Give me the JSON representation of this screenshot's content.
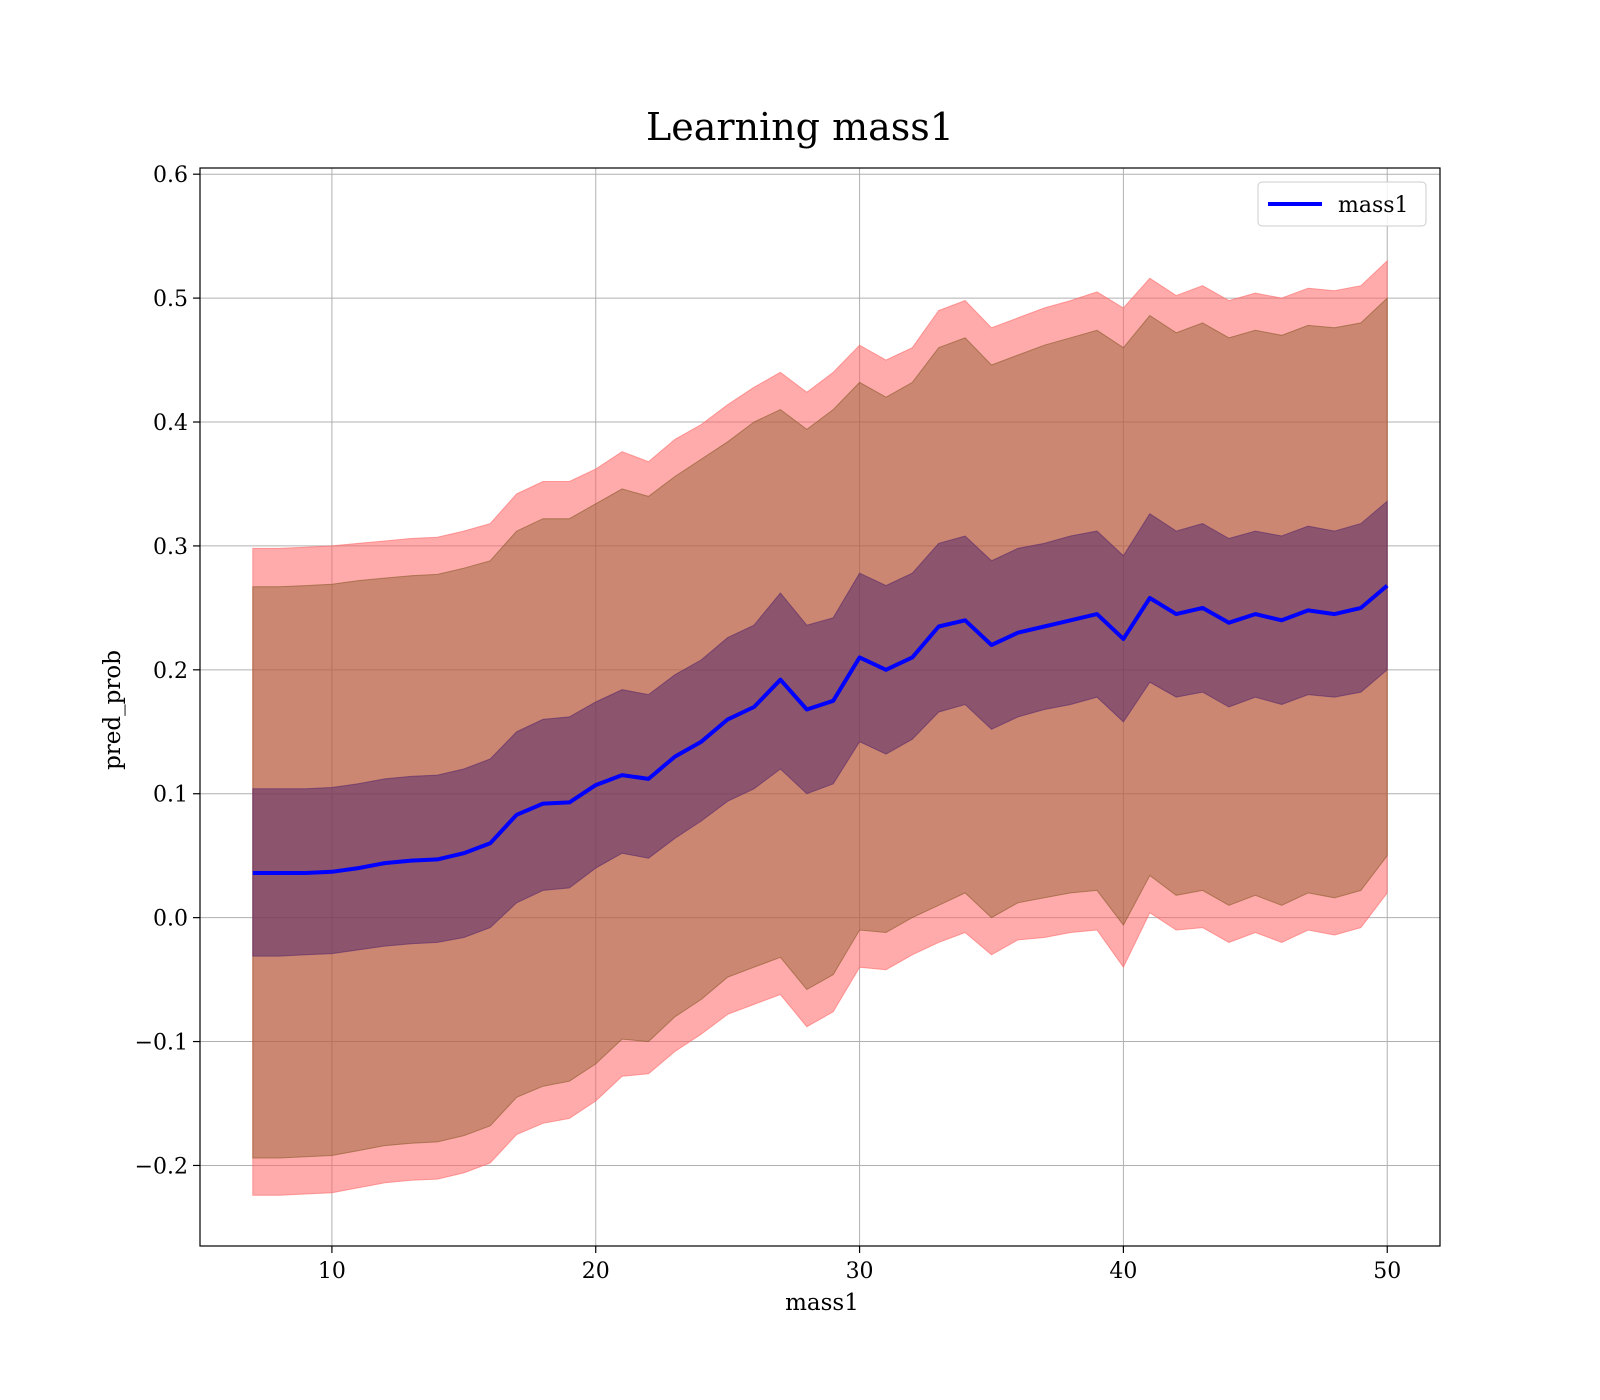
{
  "chart_data": {
    "type": "area",
    "title": "Learning mass1",
    "xlabel": "mass1",
    "ylabel": "pred_prob",
    "xlim": [
      5,
      52
    ],
    "ylim": [
      -0.265,
      0.605
    ],
    "xticks": [
      10,
      20,
      30,
      40,
      50
    ],
    "xtick_labels": [
      "10",
      "20",
      "30",
      "40",
      "50"
    ],
    "yticks": [
      -0.2,
      -0.1,
      0.0,
      0.1,
      0.2,
      0.3,
      0.4,
      0.5,
      0.6
    ],
    "ytick_labels": [
      "−0.2",
      "−0.1",
      "0.0",
      "0.1",
      "0.2",
      "0.3",
      "0.4",
      "0.5",
      "0.6"
    ],
    "grid": true,
    "legend": {
      "position": "top-right",
      "entries": [
        "mass1"
      ]
    },
    "colors": {
      "mean_line": "#0000ff",
      "outer_band": "#ff6666",
      "middle_band": "#8b5a2b",
      "inner_band": "#5a2a6a"
    },
    "x": [
      7,
      8,
      9,
      10,
      11,
      12,
      13,
      14,
      15,
      16,
      17,
      18,
      19,
      20,
      21,
      22,
      23,
      24,
      25,
      26,
      27,
      28,
      29,
      30,
      31,
      32,
      33,
      34,
      35,
      36,
      37,
      38,
      39,
      40,
      41,
      42,
      43,
      44,
      45,
      46,
      47,
      48,
      49,
      50
    ],
    "series": [
      {
        "name": "mass1",
        "values": [
          0.036,
          0.036,
          0.036,
          0.037,
          0.04,
          0.044,
          0.046,
          0.047,
          0.052,
          0.06,
          0.083,
          0.092,
          0.093,
          0.107,
          0.115,
          0.112,
          0.13,
          0.142,
          0.16,
          0.17,
          0.192,
          0.168,
          0.175,
          0.21,
          0.2,
          0.21,
          0.235,
          0.24,
          0.22,
          0.23,
          0.235,
          0.24,
          0.245,
          0.225,
          0.258,
          0.245,
          0.25,
          0.238,
          0.245,
          0.24,
          0.248,
          0.245,
          0.25,
          0.268
        ]
      }
    ],
    "bands": [
      {
        "lower": [
          -0.224,
          -0.224,
          -0.223,
          -0.222,
          -0.218,
          -0.214,
          -0.212,
          -0.211,
          -0.206,
          -0.198,
          -0.175,
          -0.166,
          -0.162,
          -0.148,
          -0.128,
          -0.126,
          -0.108,
          -0.094,
          -0.078,
          -0.07,
          -0.062,
          -0.088,
          -0.076,
          -0.04,
          -0.042,
          -0.03,
          -0.02,
          -0.012,
          -0.03,
          -0.018,
          -0.016,
          -0.012,
          -0.01,
          -0.04,
          0.004,
          -0.01,
          -0.008,
          -0.02,
          -0.012,
          -0.02,
          -0.01,
          -0.014,
          -0.008,
          0.02
        ],
        "upper": [
          0.298,
          0.298,
          0.299,
          0.3,
          0.302,
          0.304,
          0.306,
          0.307,
          0.312,
          0.318,
          0.342,
          0.352,
          0.352,
          0.362,
          0.376,
          0.368,
          0.386,
          0.398,
          0.414,
          0.428,
          0.44,
          0.424,
          0.44,
          0.462,
          0.45,
          0.46,
          0.49,
          0.498,
          0.476,
          0.484,
          0.492,
          0.498,
          0.505,
          0.492,
          0.516,
          0.502,
          0.51,
          0.498,
          0.504,
          0.5,
          0.508,
          0.506,
          0.51,
          0.53
        ]
      },
      {
        "lower": [
          -0.194,
          -0.194,
          -0.193,
          -0.192,
          -0.188,
          -0.184,
          -0.182,
          -0.181,
          -0.176,
          -0.168,
          -0.145,
          -0.136,
          -0.132,
          -0.118,
          -0.098,
          -0.1,
          -0.08,
          -0.066,
          -0.048,
          -0.04,
          -0.032,
          -0.058,
          -0.046,
          -0.01,
          -0.012,
          0.0,
          0.01,
          0.02,
          0.0,
          0.012,
          0.016,
          0.02,
          0.022,
          -0.006,
          0.034,
          0.018,
          0.022,
          0.01,
          0.018,
          0.01,
          0.02,
          0.016,
          0.022,
          0.05
        ],
        "upper": [
          0.267,
          0.267,
          0.268,
          0.269,
          0.272,
          0.274,
          0.276,
          0.277,
          0.282,
          0.288,
          0.312,
          0.322,
          0.322,
          0.334,
          0.346,
          0.34,
          0.356,
          0.37,
          0.384,
          0.4,
          0.41,
          0.394,
          0.41,
          0.432,
          0.42,
          0.432,
          0.46,
          0.468,
          0.446,
          0.454,
          0.462,
          0.468,
          0.474,
          0.46,
          0.486,
          0.472,
          0.48,
          0.468,
          0.474,
          0.47,
          0.478,
          0.476,
          0.48,
          0.5
        ]
      },
      {
        "lower": [
          -0.031,
          -0.031,
          -0.03,
          -0.029,
          -0.026,
          -0.023,
          -0.021,
          -0.02,
          -0.016,
          -0.008,
          0.012,
          0.022,
          0.024,
          0.04,
          0.052,
          0.048,
          0.064,
          0.078,
          0.094,
          0.104,
          0.12,
          0.1,
          0.108,
          0.142,
          0.132,
          0.144,
          0.166,
          0.172,
          0.152,
          0.162,
          0.168,
          0.172,
          0.178,
          0.158,
          0.19,
          0.178,
          0.182,
          0.17,
          0.178,
          0.172,
          0.18,
          0.178,
          0.182,
          0.2
        ],
        "upper": [
          0.104,
          0.104,
          0.104,
          0.105,
          0.108,
          0.112,
          0.114,
          0.115,
          0.12,
          0.128,
          0.15,
          0.16,
          0.162,
          0.174,
          0.184,
          0.18,
          0.196,
          0.208,
          0.226,
          0.236,
          0.262,
          0.236,
          0.242,
          0.278,
          0.268,
          0.278,
          0.302,
          0.308,
          0.288,
          0.298,
          0.302,
          0.308,
          0.312,
          0.292,
          0.326,
          0.312,
          0.318,
          0.306,
          0.312,
          0.308,
          0.316,
          0.312,
          0.318,
          0.336
        ]
      }
    ]
  }
}
